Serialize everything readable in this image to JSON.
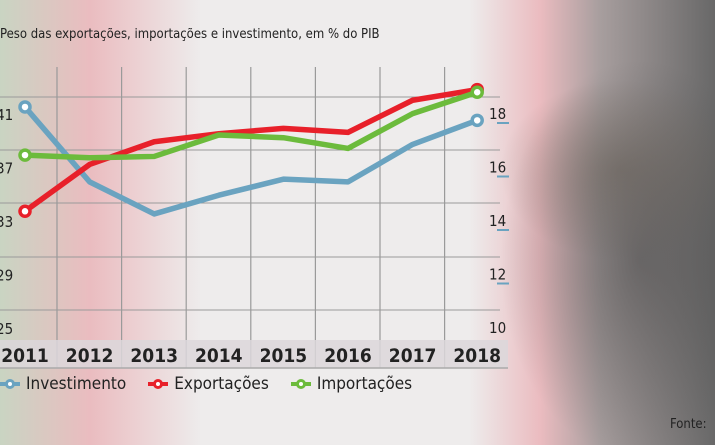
{
  "chart_data": {
    "type": "line",
    "title": "Peso das exportações, importações e investimento, em % do PIB",
    "x": [
      "2011",
      "2012",
      "2013",
      "2014",
      "2015",
      "2016",
      "2017",
      "2018"
    ],
    "y_left": {
      "ticks": [
        25,
        29,
        33,
        37,
        41
      ],
      "range": [
        25,
        41
      ]
    },
    "y_right": {
      "ticks": [
        10,
        12,
        14,
        16,
        18
      ],
      "range": [
        10,
        18
      ]
    },
    "grid": true,
    "legend_position": "bottom-left",
    "series": [
      {
        "name": "Investimento",
        "axis": "right",
        "color": "#6aa3c0",
        "values": [
          18.6,
          15.8,
          14.6,
          15.3,
          15.9,
          15.8,
          17.2,
          18.1
        ]
      },
      {
        "name": "Exportações",
        "axis": "left",
        "color": "#e8202a",
        "values": [
          34.4,
          37.9,
          39.6,
          40.2,
          40.6,
          40.3,
          42.7,
          43.5
        ]
      },
      {
        "name": "Importações",
        "axis": "left",
        "color": "#6cbb3c",
        "values": [
          38.6,
          38.4,
          38.5,
          40.1,
          39.9,
          39.1,
          41.7,
          43.3
        ]
      }
    ]
  },
  "source_label": "Fonte:"
}
